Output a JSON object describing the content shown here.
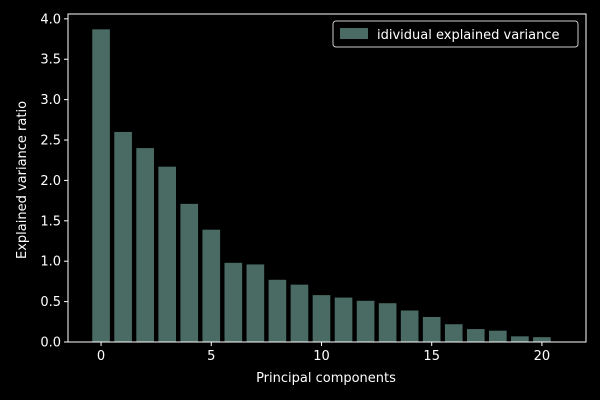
{
  "chart_data": {
    "type": "bar",
    "x": [
      0,
      1,
      2,
      3,
      4,
      5,
      6,
      7,
      8,
      9,
      10,
      11,
      12,
      13,
      14,
      15,
      16,
      17,
      18,
      19,
      20
    ],
    "series": [
      {
        "name": "idividual explained variance",
        "values": [
          3.87,
          2.6,
          2.4,
          2.17,
          1.71,
          1.39,
          0.98,
          0.96,
          0.77,
          0.71,
          0.58,
          0.55,
          0.51,
          0.48,
          0.39,
          0.31,
          0.22,
          0.16,
          0.14,
          0.07,
          0.06
        ]
      }
    ],
    "xlabel": "Principal components",
    "ylabel": "Explained variance ratio",
    "xlim": [
      -1.5,
      22.0
    ],
    "ylim": [
      0.0,
      4.06
    ],
    "xticks": [
      0,
      5,
      10,
      15,
      20
    ],
    "yticks": [
      0.0,
      0.5,
      1.0,
      1.5,
      2.0,
      2.5,
      3.0,
      3.5,
      4.0
    ],
    "ytick_labels": [
      "0.0",
      "0.5",
      "1.0",
      "1.5",
      "2.0",
      "2.5",
      "3.0",
      "3.5",
      "4.0"
    ],
    "legend_position": "top-right",
    "grid": false,
    "colors": {
      "background": "#000000",
      "bar": "#4a6b64",
      "axis": "#ffffff",
      "text": "#ffffff"
    }
  }
}
